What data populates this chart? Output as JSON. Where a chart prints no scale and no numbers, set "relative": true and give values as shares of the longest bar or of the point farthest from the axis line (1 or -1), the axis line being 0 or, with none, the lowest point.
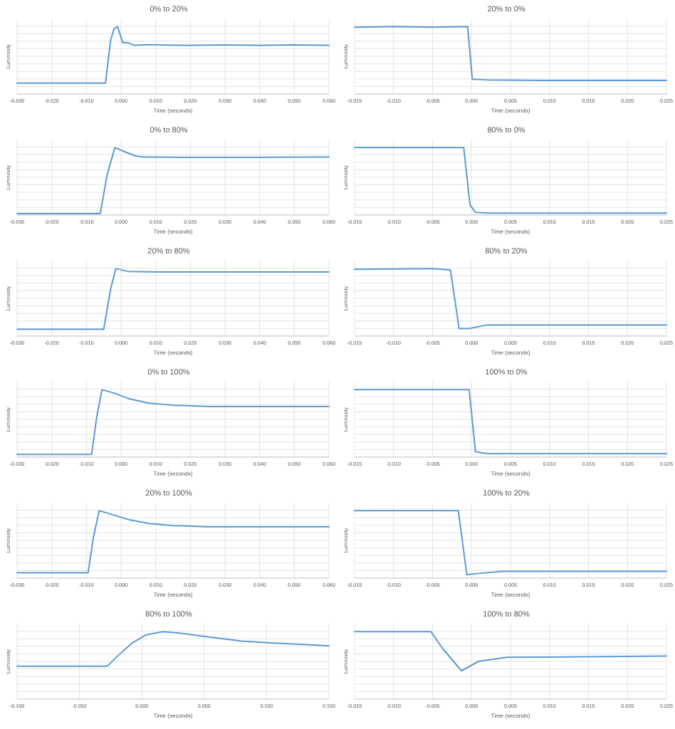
{
  "chart_data": [
    {
      "type": "line",
      "title": "0% to 20%",
      "xlabel": "Time (seconds)",
      "ylabel": "Luminosity",
      "relative": true,
      "grid": true,
      "tick_labels": "x",
      "color": "#5b9bd5",
      "xlim": [
        -0.03,
        0.06
      ],
      "xticks": [
        {
          "value": -0.03,
          "label": "-0.030"
        },
        {
          "value": -0.02,
          "label": "-0.020"
        },
        {
          "value": -0.01,
          "label": "-0.010"
        },
        {
          "value": 0,
          "label": "0.000"
        },
        {
          "value": 0.01,
          "label": "0.010"
        },
        {
          "value": 0.02,
          "label": "0.020"
        },
        {
          "value": 0.03,
          "label": "0.030"
        },
        {
          "value": 0.04,
          "label": "0.040"
        },
        {
          "value": 0.05,
          "label": "0.050"
        },
        {
          "value": 0.06,
          "label": "0.060"
        }
      ],
      "x": [
        -0.03,
        -0.01,
        -0.0045,
        -0.003,
        -0.002,
        -0.001,
        0.0005,
        0.002,
        0.004,
        0.006,
        0.01,
        0.02,
        0.03,
        0.04,
        0.05,
        0.06
      ],
      "values": [
        0.16,
        0.16,
        0.16,
        0.8,
        0.97,
        1,
        0.76,
        0.76,
        0.72,
        0.73,
        0.73,
        0.72,
        0.73,
        0.72,
        0.73,
        0.72
      ]
    },
    {
      "type": "line",
      "title": "20% to 0%",
      "xlabel": "Time (seconds)",
      "ylabel": "Luminosity",
      "relative": true,
      "grid": true,
      "tick_labels": "x",
      "color": "#5b9bd5",
      "xlim": [
        -0.015,
        0.025
      ],
      "xticks": [
        {
          "value": -0.015,
          "label": "-0.015"
        },
        {
          "value": -0.01,
          "label": "-0.010"
        },
        {
          "value": -0.005,
          "label": "-0.005"
        },
        {
          "value": 0,
          "label": "0.000"
        },
        {
          "value": 0.005,
          "label": "0.005"
        },
        {
          "value": 0.01,
          "label": "0.010"
        },
        {
          "value": 0.015,
          "label": "0.015"
        },
        {
          "value": 0.02,
          "label": "0.020"
        },
        {
          "value": 0.025,
          "label": "0.025"
        }
      ],
      "x": [
        -0.015,
        -0.01,
        -0.005,
        -0.0005,
        0.0001,
        0.002,
        0.01,
        0.025
      ],
      "values": [
        0.99,
        1,
        0.99,
        1,
        0.22,
        0.21,
        0.2,
        0.2
      ]
    },
    {
      "type": "line",
      "title": "0% to 80%",
      "xlabel": "Time (seconds)",
      "ylabel": "Luminosity",
      "relative": true,
      "grid": true,
      "tick_labels": "x",
      "color": "#5b9bd5",
      "xlim": [
        -0.03,
        0.06
      ],
      "xticks": [
        {
          "value": -0.03,
          "label": "-0.030"
        },
        {
          "value": -0.02,
          "label": "-0.020"
        },
        {
          "value": -0.01,
          "label": "-0.010"
        },
        {
          "value": 0,
          "label": "0.000"
        },
        {
          "value": 0.01,
          "label": "0.010"
        },
        {
          "value": 0.02,
          "label": "0.020"
        },
        {
          "value": 0.03,
          "label": "0.030"
        },
        {
          "value": 0.04,
          "label": "0.040"
        },
        {
          "value": 0.05,
          "label": "0.050"
        },
        {
          "value": 0.06,
          "label": "0.060"
        }
      ],
      "x": [
        -0.03,
        -0.006,
        -0.004,
        -0.0018,
        0.001,
        0.004,
        0.006,
        0.02,
        0.04,
        0.06
      ],
      "values": [
        0.02,
        0.02,
        0.6,
        1,
        0.94,
        0.88,
        0.86,
        0.855,
        0.855,
        0.86
      ]
    },
    {
      "type": "line",
      "title": "80% to 0%",
      "xlabel": "Time (seconds)",
      "ylabel": "Luminosity",
      "relative": true,
      "grid": true,
      "tick_labels": "x",
      "color": "#5b9bd5",
      "xlim": [
        -0.015,
        0.025
      ],
      "xticks": [
        {
          "value": -0.015,
          "label": "-0.015"
        },
        {
          "value": -0.01,
          "label": "-0.010"
        },
        {
          "value": -0.005,
          "label": "-0.005"
        },
        {
          "value": 0,
          "label": "0.000"
        },
        {
          "value": 0.005,
          "label": "0.005"
        },
        {
          "value": 0.01,
          "label": "0.010"
        },
        {
          "value": 0.015,
          "label": "0.015"
        },
        {
          "value": 0.02,
          "label": "0.020"
        },
        {
          "value": 0.025,
          "label": "0.025"
        }
      ],
      "x": [
        -0.015,
        -0.005,
        -0.001,
        -0.0002,
        0.0005,
        0.002,
        0.025
      ],
      "values": [
        1,
        1,
        1,
        0.15,
        0.04,
        0.03,
        0.03
      ]
    },
    {
      "type": "line",
      "title": "20% to 80%",
      "xlabel": "Time (seconds)",
      "ylabel": "Luminosity",
      "relative": true,
      "grid": true,
      "tick_labels": "x",
      "color": "#5b9bd5",
      "xlim": [
        -0.03,
        0.06
      ],
      "xticks": [
        {
          "value": -0.03,
          "label": "-0.030"
        },
        {
          "value": -0.02,
          "label": "-0.020"
        },
        {
          "value": -0.01,
          "label": "-0.010"
        },
        {
          "value": 0,
          "label": "0.000"
        },
        {
          "value": 0.01,
          "label": "0.010"
        },
        {
          "value": 0.02,
          "label": "0.020"
        },
        {
          "value": 0.03,
          "label": "0.030"
        },
        {
          "value": 0.04,
          "label": "0.040"
        },
        {
          "value": 0.05,
          "label": "0.050"
        },
        {
          "value": 0.06,
          "label": "0.060"
        }
      ],
      "x": [
        -0.03,
        -0.005,
        -0.003,
        -0.0015,
        0.002,
        0.01,
        0.03,
        0.06
      ],
      "values": [
        0.1,
        0.1,
        0.7,
        1,
        0.96,
        0.95,
        0.95,
        0.95
      ]
    },
    {
      "type": "line",
      "title": "80% to 20%",
      "xlabel": "Time (seconds)",
      "ylabel": "Luminosity",
      "relative": true,
      "grid": true,
      "tick_labels": "x",
      "color": "#5b9bd5",
      "xlim": [
        -0.015,
        0.025
      ],
      "xticks": [
        {
          "value": -0.015,
          "label": "-0.015"
        },
        {
          "value": -0.01,
          "label": "-0.010"
        },
        {
          "value": -0.005,
          "label": "-0.005"
        },
        {
          "value": 0,
          "label": "0.000"
        },
        {
          "value": 0.005,
          "label": "0.005"
        },
        {
          "value": 0.01,
          "label": "0.010"
        },
        {
          "value": 0.015,
          "label": "0.015"
        },
        {
          "value": 0.02,
          "label": "0.020"
        },
        {
          "value": 0.025,
          "label": "0.025"
        }
      ],
      "x": [
        -0.015,
        -0.005,
        -0.0027,
        -0.0016,
        -0.0003,
        0.002,
        0.01,
        0.025
      ],
      "values": [
        0.99,
        1,
        0.98,
        0.11,
        0.11,
        0.165,
        0.165,
        0.165
      ]
    },
    {
      "type": "line",
      "title": "0% to 100%",
      "xlabel": "Time (seconds)",
      "ylabel": "Luminosity",
      "relative": true,
      "grid": true,
      "tick_labels": "x",
      "color": "#5b9bd5",
      "xlim": [
        -0.03,
        0.06
      ],
      "xticks": [
        {
          "value": -0.03,
          "label": "-0.030"
        },
        {
          "value": -0.02,
          "label": "-0.020"
        },
        {
          "value": -0.01,
          "label": "-0.010"
        },
        {
          "value": 0,
          "label": "0.000"
        },
        {
          "value": 0.01,
          "label": "0.010"
        },
        {
          "value": 0.02,
          "label": "0.020"
        },
        {
          "value": 0.03,
          "label": "0.030"
        },
        {
          "value": 0.04,
          "label": "0.040"
        },
        {
          "value": 0.05,
          "label": "0.050"
        },
        {
          "value": 0.06,
          "label": "0.060"
        }
      ],
      "x": [
        -0.03,
        -0.0085,
        -0.007,
        -0.0055,
        -0.002,
        0.002,
        0.008,
        0.015,
        0.025,
        0.06
      ],
      "values": [
        0.04,
        0.04,
        0.6,
        1,
        0.95,
        0.87,
        0.8,
        0.77,
        0.75,
        0.75
      ]
    },
    {
      "type": "line",
      "title": "100% to 0%",
      "xlabel": "Time (seconds)",
      "ylabel": "Luminosity",
      "relative": true,
      "grid": true,
      "tick_labels": "x",
      "color": "#5b9bd5",
      "xlim": [
        -0.015,
        0.025
      ],
      "xticks": [
        {
          "value": -0.015,
          "label": "-0.015"
        },
        {
          "value": -0.01,
          "label": "-0.010"
        },
        {
          "value": -0.005,
          "label": "-0.005"
        },
        {
          "value": 0,
          "label": "0.000"
        },
        {
          "value": 0.005,
          "label": "0.005"
        },
        {
          "value": 0.01,
          "label": "0.010"
        },
        {
          "value": 0.015,
          "label": "0.015"
        },
        {
          "value": 0.02,
          "label": "0.020"
        },
        {
          "value": 0.025,
          "label": "0.025"
        }
      ],
      "x": [
        -0.015,
        -0.005,
        -0.0003,
        0.0005,
        0.002,
        0.025
      ],
      "values": [
        1,
        1,
        1,
        0.08,
        0.05,
        0.05
      ]
    },
    {
      "type": "line",
      "title": "20% to 100%",
      "xlabel": "Time (seconds)",
      "ylabel": "Luminosity",
      "relative": true,
      "grid": true,
      "tick_labels": "x",
      "color": "#5b9bd5",
      "xlim": [
        -0.03,
        0.06
      ],
      "xticks": [
        {
          "value": -0.03,
          "label": "-0.030"
        },
        {
          "value": -0.02,
          "label": "-0.020"
        },
        {
          "value": -0.01,
          "label": "-0.010"
        },
        {
          "value": 0,
          "label": "0.000"
        },
        {
          "value": 0.01,
          "label": "0.010"
        },
        {
          "value": 0.02,
          "label": "0.020"
        },
        {
          "value": 0.03,
          "label": "0.030"
        },
        {
          "value": 0.04,
          "label": "0.040"
        },
        {
          "value": 0.05,
          "label": "0.050"
        },
        {
          "value": 0.06,
          "label": "0.060"
        }
      ],
      "x": [
        -0.03,
        -0.0095,
        -0.008,
        -0.0063,
        -0.003,
        0.002,
        0.008,
        0.015,
        0.025,
        0.06
      ],
      "values": [
        0.08,
        0.08,
        0.6,
        1,
        0.95,
        0.87,
        0.81,
        0.78,
        0.76,
        0.76
      ]
    },
    {
      "type": "line",
      "title": "100% to 20%",
      "xlabel": "Time (seconds)",
      "ylabel": "Luminosity",
      "relative": true,
      "grid": true,
      "tick_labels": "x",
      "color": "#5b9bd5",
      "xlim": [
        -0.015,
        0.025
      ],
      "xticks": [
        {
          "value": -0.015,
          "label": "-0.015"
        },
        {
          "value": -0.01,
          "label": "-0.010"
        },
        {
          "value": -0.005,
          "label": "-0.005"
        },
        {
          "value": 0,
          "label": "0.000"
        },
        {
          "value": 0.005,
          "label": "0.005"
        },
        {
          "value": 0.01,
          "label": "0.010"
        },
        {
          "value": 0.015,
          "label": "0.015"
        },
        {
          "value": 0.02,
          "label": "0.020"
        },
        {
          "value": 0.025,
          "label": "0.025"
        }
      ],
      "x": [
        -0.015,
        -0.005,
        -0.0017,
        -0.0006,
        0.001,
        0.004,
        0.025
      ],
      "values": [
        1,
        1,
        1,
        0.05,
        0.07,
        0.1,
        0.1
      ]
    },
    {
      "type": "line",
      "title": "80% to 100%",
      "xlabel": "Time (seconds)",
      "ylabel": "Luminosity",
      "relative": true,
      "grid": true,
      "tick_labels": "x",
      "color": "#5b9bd5",
      "xlim": [
        -0.1,
        0.15
      ],
      "xticks": [
        {
          "value": -0.1,
          "label": "-0.100"
        },
        {
          "value": -0.05,
          "label": "-0.050"
        },
        {
          "value": 0,
          "label": "0.000"
        },
        {
          "value": 0.05,
          "label": "0.050"
        },
        {
          "value": 0.1,
          "label": "0.100"
        },
        {
          "value": 0.15,
          "label": "0.150"
        }
      ],
      "x": [
        -0.1,
        -0.0275,
        -0.02,
        -0.008,
        0.003,
        0.0164,
        0.03,
        0.055,
        0.08,
        0.108,
        0.13,
        0.15
      ],
      "values": [
        0.49,
        0.49,
        0.63,
        0.83,
        0.95,
        1,
        0.98,
        0.92,
        0.86,
        0.83,
        0.81,
        0.79
      ]
    },
    {
      "type": "line",
      "title": "100% to 80%",
      "xlabel": "Time (seconds)",
      "ylabel": "Luminosity",
      "relative": true,
      "grid": true,
      "tick_labels": "x",
      "color": "#5b9bd5",
      "xlim": [
        -0.015,
        0.025
      ],
      "xticks": [
        {
          "value": -0.015,
          "label": "-0.015"
        },
        {
          "value": -0.01,
          "label": "-0.010"
        },
        {
          "value": -0.005,
          "label": "-0.005"
        },
        {
          "value": 0,
          "label": "0.000"
        },
        {
          "value": 0.005,
          "label": "0.005"
        },
        {
          "value": 0.01,
          "label": "0.010"
        },
        {
          "value": 0.015,
          "label": "0.015"
        },
        {
          "value": 0.02,
          "label": "0.020"
        },
        {
          "value": 0.025,
          "label": "0.025"
        }
      ],
      "x": [
        -0.015,
        -0.0052,
        -0.0037,
        -0.0013,
        0.0009,
        0.0045,
        0.015,
        0.025
      ],
      "values": [
        1,
        1,
        0.75,
        0.42,
        0.56,
        0.62,
        0.63,
        0.64
      ]
    }
  ]
}
